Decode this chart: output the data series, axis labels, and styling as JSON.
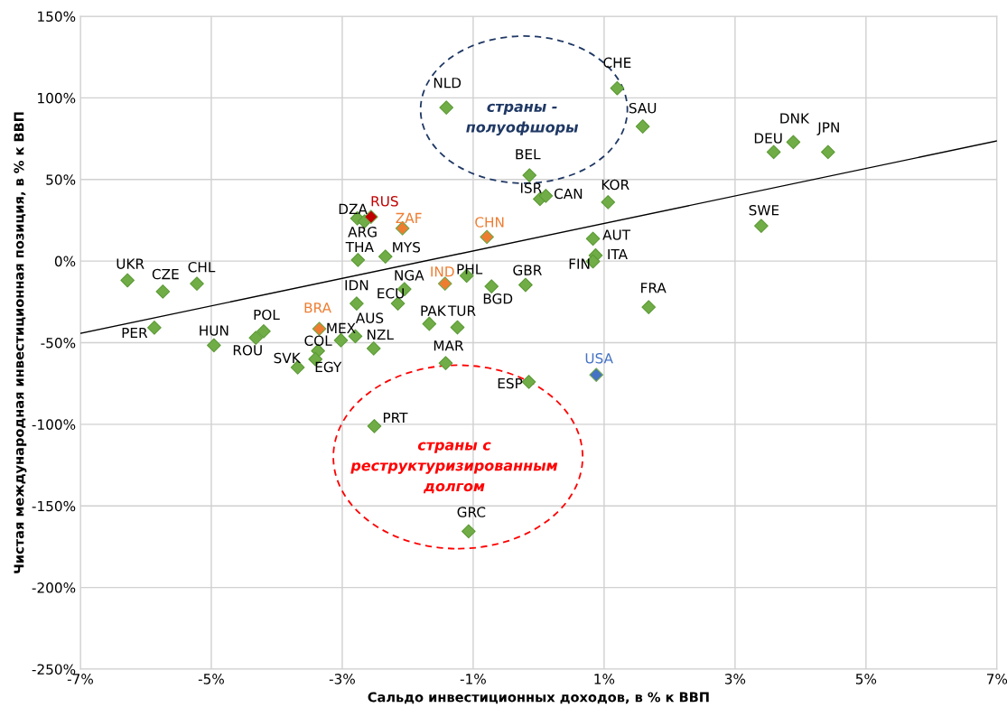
{
  "chart_data": {
    "type": "scatter",
    "xlabel": "Сальдо инвестиционных доходов, в % к ВВП",
    "ylabel": "Чистая международная инвестиционная позиция, в % к ВВП",
    "xlim": [
      -7,
      7
    ],
    "ylim": [
      -250,
      150
    ],
    "xticks": [
      {
        "value": -7,
        "label": "-7%"
      },
      {
        "value": -5,
        "label": "-5%"
      },
      {
        "value": -3,
        "label": "-3%"
      },
      {
        "value": -1,
        "label": "-1%"
      },
      {
        "value": 1,
        "label": "1%"
      },
      {
        "value": 3,
        "label": "3%"
      },
      {
        "value": 5,
        "label": "5%"
      },
      {
        "value": 7,
        "label": "7%"
      }
    ],
    "yticks": [
      {
        "value": -250,
        "label": "-250%"
      },
      {
        "value": -200,
        "label": "-200%"
      },
      {
        "value": -150,
        "label": "-150%"
      },
      {
        "value": -100,
        "label": "-100%"
      },
      {
        "value": -50,
        "label": "-50%"
      },
      {
        "value": 0,
        "label": "0%"
      },
      {
        "value": 50,
        "label": "50%"
      },
      {
        "value": 100,
        "label": "100%"
      },
      {
        "value": 150,
        "label": "150%"
      }
    ],
    "grid": true,
    "marker": "diamond",
    "annotations": [
      "страны -\nполуофшоры",
      "страны с\nреструктуризированным\nдолгом"
    ],
    "series": [
      {
        "name": "UKR",
        "color": "#70ad47",
        "x": [
          -6.28
        ],
        "values": [
          -11.8
        ]
      },
      {
        "name": "CZE",
        "color": "#70ad47",
        "x": [
          -5.74
        ],
        "values": [
          -18.7
        ]
      },
      {
        "name": "CHL",
        "color": "#70ad47",
        "x": [
          -5.22
        ],
        "values": [
          -13.8
        ]
      },
      {
        "name": "PER",
        "color": "#70ad47",
        "x": [
          -5.87
        ],
        "values": [
          -40.8
        ]
      },
      {
        "name": "HUN",
        "color": "#70ad47",
        "x": [
          -4.96
        ],
        "values": [
          -51.6
        ]
      },
      {
        "name": "POL",
        "color": "#70ad47",
        "x": [
          -4.2
        ],
        "values": [
          -43
        ]
      },
      {
        "name": "ROU",
        "color": "#70ad47",
        "x": [
          -4.32
        ],
        "values": [
          -47
        ]
      },
      {
        "name": "SVK",
        "color": "#70ad47",
        "x": [
          -3.68
        ],
        "values": [
          -65.1
        ]
      },
      {
        "name": "COL",
        "color": "#70ad47",
        "x": [
          -3.37
        ],
        "values": [
          -55
        ]
      },
      {
        "name": "EGY",
        "color": "#70ad47",
        "x": [
          -3.41
        ],
        "values": [
          -60.1
        ]
      },
      {
        "name": "MEX",
        "color": "#70ad47",
        "x": [
          -3.02
        ],
        "values": [
          -48.5
        ]
      },
      {
        "name": "AUS",
        "color": "#70ad47",
        "x": [
          -2.8
        ],
        "values": [
          -46.1
        ]
      },
      {
        "name": "NZL",
        "color": "#70ad47",
        "x": [
          -2.52
        ],
        "values": [
          -53.5
        ]
      },
      {
        "name": "BRA",
        "color": "#ed7d31",
        "x": [
          -3.35
        ],
        "values": [
          -41.5
        ]
      },
      {
        "name": "IDN",
        "color": "#70ad47",
        "x": [
          -2.78
        ],
        "values": [
          -26
        ]
      },
      {
        "name": "ECU",
        "color": "#70ad47",
        "x": [
          -2.15
        ],
        "values": [
          -26
        ]
      },
      {
        "name": "NGA",
        "color": "#70ad47",
        "x": [
          -2.05
        ],
        "values": [
          -17.2
        ]
      },
      {
        "name": "THA",
        "color": "#70ad47",
        "x": [
          -2.76
        ],
        "values": [
          0.7
        ]
      },
      {
        "name": "MYS",
        "color": "#70ad47",
        "x": [
          -2.34
        ],
        "values": [
          2.8
        ]
      },
      {
        "name": "DZA",
        "color": "#70ad47",
        "x": [
          -2.77
        ],
        "values": [
          26.2
        ]
      },
      {
        "name": "ARG",
        "color": "#70ad47",
        "x": [
          -2.66
        ],
        "values": [
          24.3
        ]
      },
      {
        "name": "RUS",
        "color": "#c00000",
        "x": [
          -2.56
        ],
        "values": [
          27.1
        ]
      },
      {
        "name": "ZAF",
        "color": "#ed7d31",
        "x": [
          -2.08
        ],
        "values": [
          20.1
        ]
      },
      {
        "name": "CHN",
        "color": "#ed7d31",
        "x": [
          -0.79
        ],
        "values": [
          14.8
        ]
      },
      {
        "name": "IND",
        "color": "#ed7d31",
        "x": [
          -1.43
        ],
        "values": [
          -13.8
        ]
      },
      {
        "name": "PHL",
        "color": "#70ad47",
        "x": [
          -1.1
        ],
        "values": [
          -9
        ]
      },
      {
        "name": "BGD",
        "color": "#70ad47",
        "x": [
          -0.72
        ],
        "values": [
          -15.5
        ]
      },
      {
        "name": "GBR",
        "color": "#70ad47",
        "x": [
          -0.2
        ],
        "values": [
          -14.6
        ]
      },
      {
        "name": "PAK",
        "color": "#70ad47",
        "x": [
          -1.67
        ],
        "values": [
          -38.4
        ]
      },
      {
        "name": "TUR",
        "color": "#70ad47",
        "x": [
          -1.24
        ],
        "values": [
          -40.6
        ]
      },
      {
        "name": "MAR",
        "color": "#70ad47",
        "x": [
          -1.42
        ],
        "values": [
          -62.5
        ]
      },
      {
        "name": "ESP",
        "color": "#70ad47",
        "x": [
          -0.15
        ],
        "values": [
          -74
        ]
      },
      {
        "name": "PRT",
        "color": "#70ad47",
        "x": [
          -2.51
        ],
        "values": [
          -101.1
        ]
      },
      {
        "name": "GRC",
        "color": "#70ad47",
        "x": [
          -1.07
        ],
        "values": [
          -165.6
        ]
      },
      {
        "name": "NLD",
        "color": "#70ad47",
        "x": [
          -1.41
        ],
        "values": [
          94.1
        ]
      },
      {
        "name": "CHE",
        "color": "#70ad47",
        "x": [
          1.2
        ],
        "values": [
          105.9
        ]
      },
      {
        "name": "SAU",
        "color": "#70ad47",
        "x": [
          1.59
        ],
        "values": [
          82.5
        ]
      },
      {
        "name": "BEL",
        "color": "#70ad47",
        "x": [
          -0.14
        ],
        "values": [
          52.6
        ]
      },
      {
        "name": "ISR",
        "color": "#70ad47",
        "x": [
          0.02
        ],
        "values": [
          38
        ]
      },
      {
        "name": "CAN",
        "color": "#70ad47",
        "x": [
          0.11
        ],
        "values": [
          40
        ]
      },
      {
        "name": "KOR",
        "color": "#70ad47",
        "x": [
          1.06
        ],
        "values": [
          36.1
        ]
      },
      {
        "name": "AUT",
        "color": "#70ad47",
        "x": [
          0.83
        ],
        "values": [
          13.7
        ]
      },
      {
        "name": "ITA",
        "color": "#70ad47",
        "x": [
          0.87
        ],
        "values": [
          3.5
        ]
      },
      {
        "name": "FIN",
        "color": "#70ad47",
        "x": [
          0.83
        ],
        "values": [
          -0.2
        ]
      },
      {
        "name": "FRA",
        "color": "#70ad47",
        "x": [
          1.68
        ],
        "values": [
          -28.2
        ]
      },
      {
        "name": "USA",
        "color": "#4472c4",
        "x": [
          0.88
        ],
        "values": [
          -69.7
        ]
      },
      {
        "name": "DEU",
        "color": "#70ad47",
        "x": [
          3.59
        ],
        "values": [
          66.8
        ]
      },
      {
        "name": "DNK",
        "color": "#70ad47",
        "x": [
          3.89
        ],
        "values": [
          72.9
        ]
      },
      {
        "name": "JPN",
        "color": "#70ad47",
        "x": [
          4.42
        ],
        "values": [
          66.8
        ]
      },
      {
        "name": "SWE",
        "color": "#70ad47",
        "x": [
          3.4
        ],
        "values": [
          21.6
        ]
      },
      {
        "type": "line",
        "marker": "none",
        "color": "#000000",
        "x": [
          -7,
          7
        ],
        "values": [
          -44.3,
          73.6
        ]
      }
    ]
  }
}
